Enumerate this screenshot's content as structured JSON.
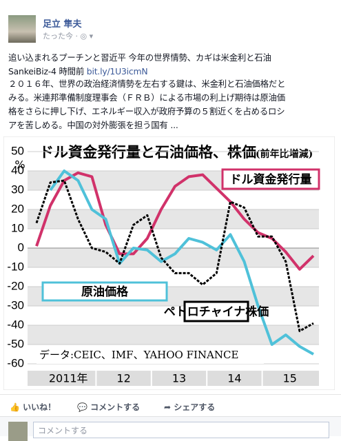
{
  "post": {
    "author": "足立 隼夫",
    "time": "たった今 · ◎ ▾",
    "headline": "追い込まれるプーチンと習近平 今年の世界情勢、カギは米金利と石油",
    "source": "SankeiBiz-4 時間前",
    "link": "bit.ly/1U3icmN",
    "body": [
      "２０１６年、世界の政治経済情勢を左右する鍵は、米金利と石油価格だと",
      "みる。米連邦準備制度理事会（ＦＲＢ）による市場の利上げ期待は原油価",
      "格をさらに押し下げ、エネルギー収入が政府予算の５割近くを占めるロシ",
      "アを苦しめる。中国の対外膨張を担う国有 ..."
    ],
    "actions": [
      "いいね！",
      "コメントする",
      "シェアする"
    ],
    "comment_placeholder": "コメントする"
  },
  "chart_data": {
    "type": "line",
    "title": "ドル資金発行量と石油価格、株価",
    "subtitle": "(前年比増減)",
    "y_unit": "%",
    "source_note": "データ:CEIC、IMF、YAHOO FINANCE",
    "year_labels": [
      "2011年",
      "12",
      "13",
      "14",
      "15"
    ],
    "ylim": [
      -60,
      50
    ],
    "yticks": [
      50,
      40,
      30,
      20,
      10,
      0,
      -10,
      -20,
      -30,
      -40,
      -50,
      -60
    ],
    "series": [
      {
        "name": "ドル資金発行量",
        "color": "#d1326a",
        "values": [
          1,
          22,
          35,
          39,
          37,
          12,
          -3,
          -3,
          5,
          20,
          32,
          37,
          38,
          31,
          24,
          15,
          8,
          5,
          -2,
          -11,
          -4
        ]
      },
      {
        "name": "原油価格",
        "color": "#4fc1d9",
        "values": [
          null,
          30,
          40,
          35,
          20,
          15,
          -8,
          0,
          -1,
          -7,
          -3,
          5,
          3,
          -1,
          7,
          -7,
          -30,
          -50,
          -45,
          -51,
          -55
        ]
      },
      {
        "name": "ペトロチャイナ株価",
        "color": "#000000",
        "values": [
          13,
          34,
          35,
          15,
          0,
          -2,
          -8,
          12,
          17,
          -5,
          -13,
          -13,
          -19,
          -13,
          24,
          21,
          6,
          6,
          -7,
          -43,
          -39
        ]
      }
    ]
  }
}
